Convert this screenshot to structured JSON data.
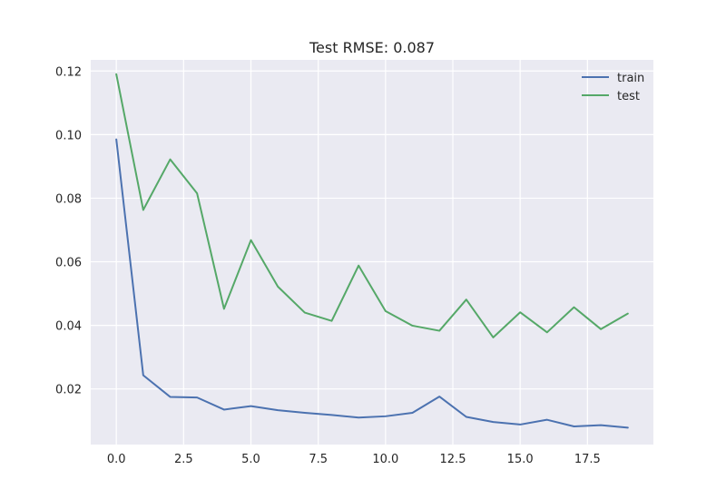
{
  "chart_data": {
    "type": "line",
    "title": "Test RMSE: 0.087",
    "xlabel": "",
    "ylabel": "",
    "x": [
      0,
      1,
      2,
      3,
      4,
      5,
      6,
      7,
      8,
      9,
      10,
      11,
      12,
      13,
      14,
      15,
      16,
      17,
      18,
      19
    ],
    "xlim": [
      -0.95,
      19.95
    ],
    "ylim": [
      0.0025,
      0.1235
    ],
    "xticks": [
      0.0,
      2.5,
      5.0,
      7.5,
      10.0,
      12.5,
      15.0,
      17.5
    ],
    "xtick_labels": [
      "0.0",
      "2.5",
      "5.0",
      "7.5",
      "10.0",
      "12.5",
      "15.0",
      "17.5"
    ],
    "yticks": [
      0.02,
      0.04,
      0.06,
      0.08,
      0.1,
      0.12
    ],
    "ytick_labels": [
      "0.02",
      "0.04",
      "0.06",
      "0.08",
      "0.10",
      "0.12"
    ],
    "grid": true,
    "legend_position": "top-right",
    "background_color": "#eaeaf2",
    "grid_color": "#ffffff",
    "series": [
      {
        "name": "train",
        "color": "#4c72b0",
        "values": [
          0.0985,
          0.0243,
          0.0175,
          0.0173,
          0.0135,
          0.0146,
          0.0133,
          0.0125,
          0.0118,
          0.011,
          0.0114,
          0.0125,
          0.0176,
          0.0112,
          0.0096,
          0.0088,
          0.0103,
          0.0082,
          0.0086,
          0.0078
        ]
      },
      {
        "name": "test",
        "color": "#55a868",
        "values": [
          0.119,
          0.0763,
          0.0922,
          0.0815,
          0.0452,
          0.0668,
          0.0522,
          0.044,
          0.0414,
          0.0588,
          0.0445,
          0.0399,
          0.0383,
          0.0481,
          0.0362,
          0.0441,
          0.0378,
          0.0457,
          0.0388,
          0.0437
        ]
      }
    ]
  }
}
